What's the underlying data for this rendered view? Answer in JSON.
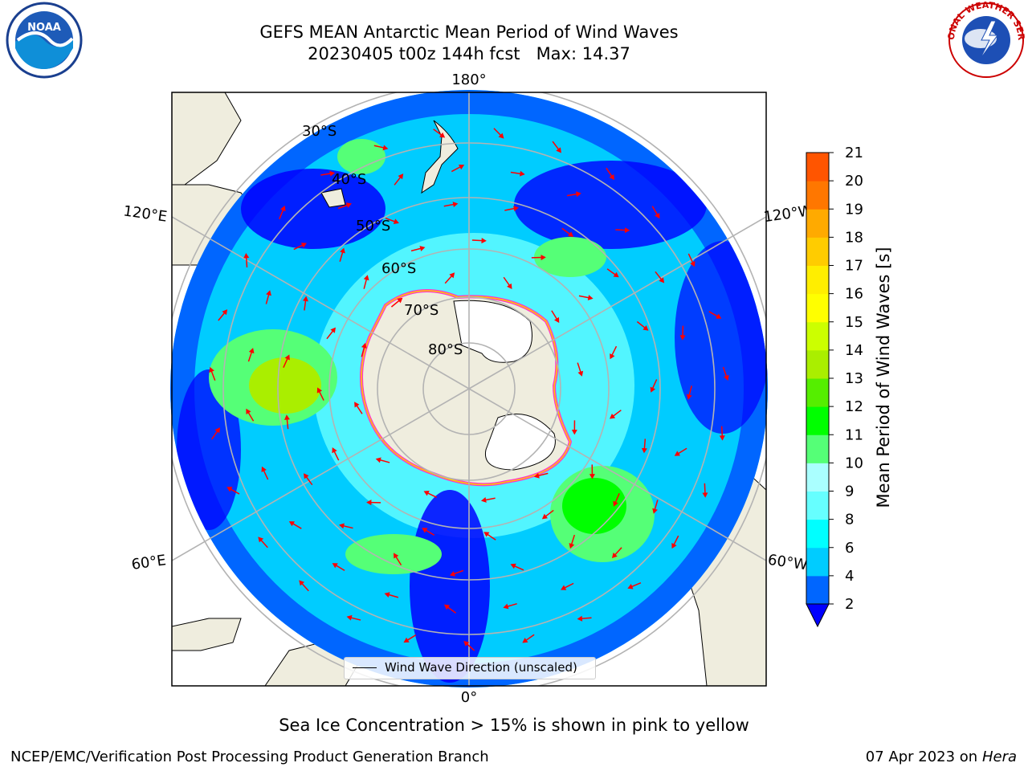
{
  "title": {
    "line1": "GEFS MEAN Antarctic Mean Period of Wind Waves",
    "line2": "20230405 t00z 144h fcst   Max: 14.37"
  },
  "map": {
    "projection": "south-polar-stereographic",
    "longitude_labels": [
      "180°",
      "120°E",
      "120°W",
      "60°E",
      "60°W",
      "0°"
    ],
    "latitude_labels": [
      "30°S",
      "40°S",
      "50°S",
      "60°S",
      "70°S",
      "80°S"
    ],
    "legend_label": "Wind Wave Direction (unscaled)",
    "arrow_color": "#ff0000",
    "land_color": "#efedde",
    "ice_edge_colors": [
      "#ff33cc",
      "#ffcc00"
    ]
  },
  "colorbar": {
    "label": "Mean Period of Wind Waves [s]",
    "ticks": [
      "2",
      "4",
      "6",
      "8",
      "9",
      "10",
      "11",
      "12",
      "13",
      "14",
      "15",
      "16",
      "17",
      "18",
      "19",
      "20",
      "21"
    ],
    "colors": [
      "#0000ff",
      "#0066ff",
      "#00ccff",
      "#00ffff",
      "#66ffff",
      "#aaffff",
      "#55ff77",
      "#00ff00",
      "#55ee00",
      "#aaee00",
      "#ccff00",
      "#ffff00",
      "#ffee00",
      "#ffcc00",
      "#ffaa00",
      "#ff7700",
      "#ff5500",
      "#ff2200"
    ]
  },
  "note": "Sea Ice Concentration > 15% is shown in pink to yellow",
  "footer": {
    "left": "NCEP/EMC/Verification Post Processing Product Generation Branch",
    "date": "07 Apr 2023 on ",
    "machine": "Hera"
  },
  "logos": {
    "noaa_text": "NOAA",
    "nws_text": "NATIONAL WEATHER SERVICE"
  }
}
